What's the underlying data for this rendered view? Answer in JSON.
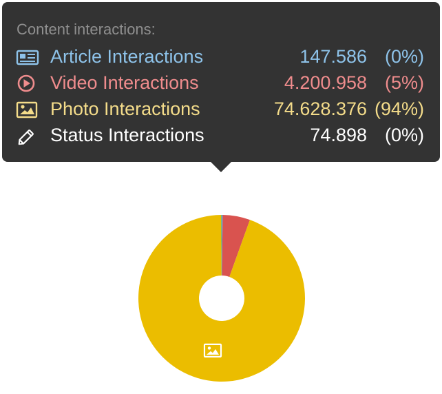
{
  "tooltip": {
    "title": "Content interactions:",
    "rows": [
      {
        "icon": "newspaper-icon",
        "label": "Article Interactions",
        "value": "147.586",
        "pct": "(0%)",
        "color": "#8ec3ea"
      },
      {
        "icon": "play-circle-icon",
        "label": "Video Interactions",
        "value": "4.200.958",
        "pct": "(5%)",
        "color": "#ef8c8d"
      },
      {
        "icon": "image-icon",
        "label": "Photo Interactions",
        "value": "74.628.376",
        "pct": "(94%)",
        "color": "#f4dc8a"
      },
      {
        "icon": "pencil-icon",
        "label": "Status Interactions",
        "value": "74.898",
        "pct": "(0%)",
        "color": "#ffffff"
      }
    ]
  },
  "chart_data": {
    "type": "pie",
    "title": "",
    "donut": true,
    "categories": [
      "Article Interactions",
      "Video Interactions",
      "Photo Interactions",
      "Status Interactions"
    ],
    "values": [
      147586,
      4200958,
      74628376,
      74898
    ],
    "colors": [
      "#5b9bd5",
      "#d9534f",
      "#ebbd00",
      "#4caf8a"
    ],
    "slice_icons": [
      "",
      "",
      "image-icon",
      ""
    ]
  }
}
